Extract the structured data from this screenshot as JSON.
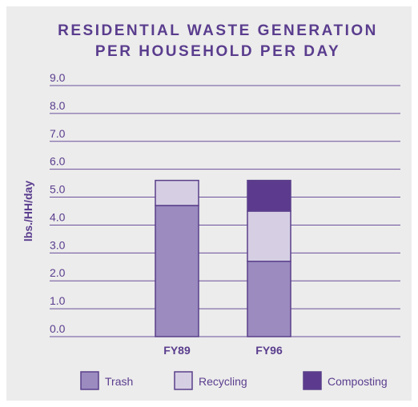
{
  "chart_data": {
    "type": "stacked-bar",
    "title": [
      "RESIDENTIAL WASTE GENERATION",
      "PER HOUSEHOLD PER DAY"
    ],
    "ylabel": "lbs./HH/day",
    "categories": [
      "FY89",
      "FY96"
    ],
    "series": [
      {
        "name": "Trash",
        "color": "#9b8bbf",
        "values": [
          4.7,
          2.7
        ]
      },
      {
        "name": "Recycling",
        "color": "#d6cfe4",
        "values": [
          0.9,
          1.8
        ]
      },
      {
        "name": "Composting",
        "color": "#5c3a8e",
        "values": [
          0,
          1.1
        ]
      }
    ],
    "ylim": [
      0,
      9
    ],
    "yticks": [
      {
        "value": 0,
        "label": "0.0"
      },
      {
        "value": 1,
        "label": "1.0"
      },
      {
        "value": 2,
        "label": "2.0"
      },
      {
        "value": 3,
        "label": "3.0"
      },
      {
        "value": 4,
        "label": "4.0"
      },
      {
        "value": 5,
        "label": "5.0"
      },
      {
        "value": 6,
        "label": "6.0"
      },
      {
        "value": 7,
        "label": "7.0"
      },
      {
        "value": 8,
        "label": "8.0"
      },
      {
        "value": 9,
        "label": "9.0"
      }
    ],
    "grid": true,
    "legend": "bottom"
  }
}
